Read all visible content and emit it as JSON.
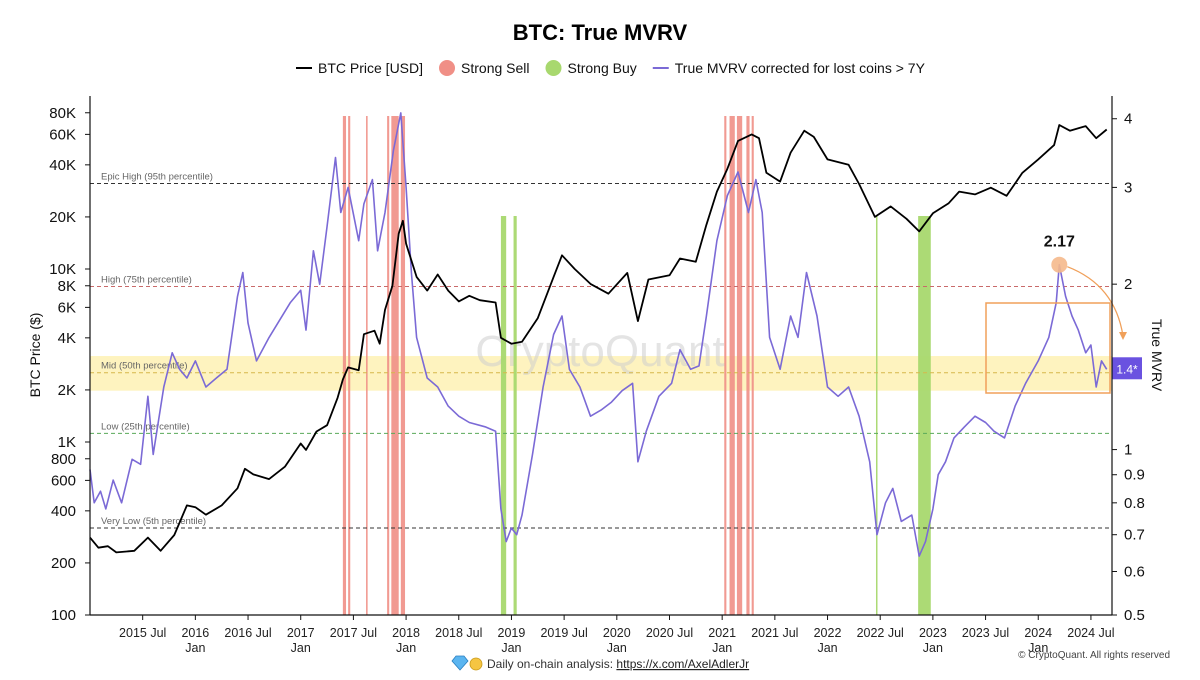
{
  "chart_data": {
    "type": "line",
    "title": "BTC: True MVRV",
    "legend": [
      {
        "name": "BTC Price [USD]",
        "color": "#000000",
        "kind": "line"
      },
      {
        "name": "Strong Sell",
        "color": "#f08f86",
        "kind": "dot"
      },
      {
        "name": "Strong Buy",
        "color": "#a8d86e",
        "kind": "dot"
      },
      {
        "name": "True MVRV corrected for lost coins > 7Y",
        "color": "#7b6ad6",
        "kind": "line"
      }
    ],
    "y_left": {
      "label": "BTC Price ($)",
      "scale": "log",
      "range": [
        100,
        100000
      ],
      "ticks": [
        [
          "80K",
          80000
        ],
        [
          "60K",
          60000
        ],
        [
          "40K",
          40000
        ],
        [
          "20K",
          20000
        ],
        [
          "10K",
          10000
        ],
        [
          "8K",
          8000
        ],
        [
          "6K",
          6000
        ],
        [
          "4K",
          4000
        ],
        [
          "2K",
          2000
        ],
        [
          "1K",
          1000
        ],
        [
          "800",
          800
        ],
        [
          "600",
          600
        ],
        [
          "400",
          400
        ],
        [
          "200",
          200
        ],
        [
          "100",
          100
        ]
      ]
    },
    "y_right": {
      "label": "True MVRV",
      "scale": "log",
      "range": [
        0.5,
        4.4
      ],
      "ticks": [
        [
          "4",
          4
        ],
        [
          "3",
          3
        ],
        [
          "2",
          2
        ],
        [
          "1",
          1
        ],
        [
          "0.9",
          0.9
        ],
        [
          "0.8",
          0.8
        ],
        [
          "0.7",
          0.7
        ],
        [
          "0.6",
          0.6
        ],
        [
          "0.5",
          0.5
        ]
      ]
    },
    "x_range": [
      2015.0,
      2024.7
    ],
    "x_ticks": [
      {
        "t": 2015.5,
        "l1": "2015 Jul",
        "l2": ""
      },
      {
        "t": 2016.0,
        "l1": "2016",
        "l2": "Jan"
      },
      {
        "t": 2016.5,
        "l1": "2016 Jul",
        "l2": ""
      },
      {
        "t": 2017.0,
        "l1": "2017",
        "l2": "Jan"
      },
      {
        "t": 2017.5,
        "l1": "2017 Jul",
        "l2": ""
      },
      {
        "t": 2018.0,
        "l1": "2018",
        "l2": "Jan"
      },
      {
        "t": 2018.5,
        "l1": "2018 Jul",
        "l2": ""
      },
      {
        "t": 2019.0,
        "l1": "2019",
        "l2": "Jan"
      },
      {
        "t": 2019.5,
        "l1": "2019 Jul",
        "l2": ""
      },
      {
        "t": 2020.0,
        "l1": "2020",
        "l2": "Jan"
      },
      {
        "t": 2020.5,
        "l1": "2020 Jul",
        "l2": ""
      },
      {
        "t": 2021.0,
        "l1": "2021",
        "l2": "Jan"
      },
      {
        "t": 2021.5,
        "l1": "2021 Jul",
        "l2": ""
      },
      {
        "t": 2022.0,
        "l1": "2022",
        "l2": "Jan"
      },
      {
        "t": 2022.5,
        "l1": "2022 Jul",
        "l2": ""
      },
      {
        "t": 2023.0,
        "l1": "2023",
        "l2": "Jan"
      },
      {
        "t": 2023.5,
        "l1": "2023 Jul",
        "l2": ""
      },
      {
        "t": 2024.0,
        "l1": "2024",
        "l2": "Jan"
      },
      {
        "t": 2024.5,
        "l1": "2024 Jul",
        "l2": ""
      }
    ],
    "levels": [
      {
        "label": "Epic High (95th percentile)",
        "value": 3.05,
        "color": "#333333"
      },
      {
        "label": "High (75th percentile)",
        "value": 1.98,
        "color": "#c96a6a"
      },
      {
        "label": "Mid (50th percentile)",
        "value": 1.38,
        "color": "#d6b84a"
      },
      {
        "label": "Low (25th percentile)",
        "value": 1.07,
        "color": "#5aaa5a"
      },
      {
        "label": "Very Low (5th percentile)",
        "value": 0.72,
        "color": "#333333"
      }
    ],
    "mid_band": [
      1.28,
      1.48
    ],
    "sell_periods": [
      [
        2017.4,
        2017.43
      ],
      [
        2017.45,
        2017.47
      ],
      [
        2017.62,
        2017.635
      ],
      [
        2017.82,
        2017.84
      ],
      [
        2017.86,
        2017.93
      ],
      [
        2017.95,
        2017.99
      ],
      [
        2021.02,
        2021.04
      ],
      [
        2021.07,
        2021.12
      ],
      [
        2021.14,
        2021.19
      ],
      [
        2021.23,
        2021.26
      ],
      [
        2021.28,
        2021.3
      ]
    ],
    "buy_periods": [
      [
        2018.9,
        2018.95
      ],
      [
        2019.02,
        2019.05
      ],
      [
        2022.46,
        2022.465
      ],
      [
        2022.86,
        2022.98
      ]
    ],
    "btc_price": [
      [
        2015.0,
        280
      ],
      [
        2015.08,
        245
      ],
      [
        2015.17,
        250
      ],
      [
        2015.25,
        230
      ],
      [
        2015.42,
        235
      ],
      [
        2015.55,
        280
      ],
      [
        2015.67,
        235
      ],
      [
        2015.8,
        290
      ],
      [
        2015.92,
        430
      ],
      [
        2016.0,
        420
      ],
      [
        2016.1,
        380
      ],
      [
        2016.25,
        430
      ],
      [
        2016.4,
        540
      ],
      [
        2016.47,
        700
      ],
      [
        2016.55,
        650
      ],
      [
        2016.7,
        610
      ],
      [
        2016.85,
        720
      ],
      [
        2017.0,
        980
      ],
      [
        2017.05,
        900
      ],
      [
        2017.15,
        1150
      ],
      [
        2017.25,
        1250
      ],
      [
        2017.35,
        1800
      ],
      [
        2017.4,
        2300
      ],
      [
        2017.45,
        2700
      ],
      [
        2017.55,
        2600
      ],
      [
        2017.6,
        4200
      ],
      [
        2017.7,
        4400
      ],
      [
        2017.75,
        3700
      ],
      [
        2017.8,
        5800
      ],
      [
        2017.87,
        8000
      ],
      [
        2017.93,
        16000
      ],
      [
        2017.97,
        19000
      ],
      [
        2018.0,
        14000
      ],
      [
        2018.1,
        9000
      ],
      [
        2018.2,
        7500
      ],
      [
        2018.3,
        9300
      ],
      [
        2018.4,
        7500
      ],
      [
        2018.5,
        6500
      ],
      [
        2018.6,
        7000
      ],
      [
        2018.7,
        6600
      ],
      [
        2018.85,
        6400
      ],
      [
        2018.9,
        4000
      ],
      [
        2019.0,
        3700
      ],
      [
        2019.1,
        3800
      ],
      [
        2019.25,
        5200
      ],
      [
        2019.4,
        9000
      ],
      [
        2019.48,
        12000
      ],
      [
        2019.6,
        10000
      ],
      [
        2019.75,
        8200
      ],
      [
        2019.92,
        7200
      ],
      [
        2020.1,
        9500
      ],
      [
        2020.2,
        5000
      ],
      [
        2020.3,
        8700
      ],
      [
        2020.5,
        9200
      ],
      [
        2020.6,
        11500
      ],
      [
        2020.75,
        11000
      ],
      [
        2020.85,
        18000
      ],
      [
        2020.95,
        28000
      ],
      [
        2021.05,
        38000
      ],
      [
        2021.15,
        55000
      ],
      [
        2021.28,
        60000
      ],
      [
        2021.35,
        57000
      ],
      [
        2021.42,
        36000
      ],
      [
        2021.55,
        32000
      ],
      [
        2021.65,
        47000
      ],
      [
        2021.78,
        63000
      ],
      [
        2021.87,
        58000
      ],
      [
        2022.0,
        43000
      ],
      [
        2022.2,
        40000
      ],
      [
        2022.3,
        31000
      ],
      [
        2022.45,
        20000
      ],
      [
        2022.6,
        23000
      ],
      [
        2022.75,
        19500
      ],
      [
        2022.87,
        16500
      ],
      [
        2023.0,
        21000
      ],
      [
        2023.15,
        24000
      ],
      [
        2023.25,
        28000
      ],
      [
        2023.4,
        27000
      ],
      [
        2023.55,
        29500
      ],
      [
        2023.7,
        26500
      ],
      [
        2023.85,
        36000
      ],
      [
        2024.0,
        43000
      ],
      [
        2024.15,
        52000
      ],
      [
        2024.2,
        68000
      ],
      [
        2024.3,
        63000
      ],
      [
        2024.45,
        67000
      ],
      [
        2024.55,
        57000
      ],
      [
        2024.65,
        64000
      ]
    ],
    "true_mvrv": [
      [
        2015.0,
        0.92
      ],
      [
        2015.04,
        0.8
      ],
      [
        2015.1,
        0.84
      ],
      [
        2015.15,
        0.78
      ],
      [
        2015.22,
        0.88
      ],
      [
        2015.3,
        0.8
      ],
      [
        2015.4,
        0.96
      ],
      [
        2015.48,
        0.94
      ],
      [
        2015.55,
        1.25
      ],
      [
        2015.6,
        0.98
      ],
      [
        2015.7,
        1.3
      ],
      [
        2015.78,
        1.5
      ],
      [
        2015.85,
        1.4
      ],
      [
        2015.92,
        1.35
      ],
      [
        2016.0,
        1.45
      ],
      [
        2016.1,
        1.3
      ],
      [
        2016.2,
        1.35
      ],
      [
        2016.3,
        1.4
      ],
      [
        2016.4,
        1.9
      ],
      [
        2016.45,
        2.1
      ],
      [
        2016.5,
        1.7
      ],
      [
        2016.58,
        1.45
      ],
      [
        2016.7,
        1.6
      ],
      [
        2016.8,
        1.72
      ],
      [
        2016.9,
        1.85
      ],
      [
        2017.0,
        1.95
      ],
      [
        2017.05,
        1.65
      ],
      [
        2017.12,
        2.3
      ],
      [
        2017.18,
        2.0
      ],
      [
        2017.25,
        2.55
      ],
      [
        2017.33,
        3.4
      ],
      [
        2017.38,
        2.7
      ],
      [
        2017.45,
        3.0
      ],
      [
        2017.55,
        2.4
      ],
      [
        2017.6,
        2.8
      ],
      [
        2017.68,
        3.1
      ],
      [
        2017.73,
        2.3
      ],
      [
        2017.8,
        2.7
      ],
      [
        2017.88,
        3.5
      ],
      [
        2017.95,
        4.1
      ],
      [
        2018.0,
        3.0
      ],
      [
        2018.05,
        2.1
      ],
      [
        2018.1,
        1.6
      ],
      [
        2018.2,
        1.35
      ],
      [
        2018.3,
        1.3
      ],
      [
        2018.4,
        1.2
      ],
      [
        2018.5,
        1.15
      ],
      [
        2018.6,
        1.12
      ],
      [
        2018.75,
        1.1
      ],
      [
        2018.85,
        1.08
      ],
      [
        2018.9,
        0.78
      ],
      [
        2018.95,
        0.68
      ],
      [
        2019.0,
        0.72
      ],
      [
        2019.05,
        0.7
      ],
      [
        2019.1,
        0.76
      ],
      [
        2019.2,
        0.98
      ],
      [
        2019.3,
        1.3
      ],
      [
        2019.4,
        1.62
      ],
      [
        2019.48,
        1.75
      ],
      [
        2019.55,
        1.4
      ],
      [
        2019.65,
        1.3
      ],
      [
        2019.75,
        1.15
      ],
      [
        2019.85,
        1.18
      ],
      [
        2019.95,
        1.22
      ],
      [
        2020.05,
        1.28
      ],
      [
        2020.15,
        1.32
      ],
      [
        2020.2,
        0.95
      ],
      [
        2020.28,
        1.08
      ],
      [
        2020.4,
        1.25
      ],
      [
        2020.52,
        1.32
      ],
      [
        2020.6,
        1.52
      ],
      [
        2020.7,
        1.4
      ],
      [
        2020.78,
        1.42
      ],
      [
        2020.85,
        1.75
      ],
      [
        2020.95,
        2.4
      ],
      [
        2021.05,
        2.9
      ],
      [
        2021.15,
        3.2
      ],
      [
        2021.25,
        2.7
      ],
      [
        2021.32,
        3.1
      ],
      [
        2021.38,
        2.7
      ],
      [
        2021.45,
        1.6
      ],
      [
        2021.55,
        1.4
      ],
      [
        2021.65,
        1.75
      ],
      [
        2021.72,
        1.6
      ],
      [
        2021.8,
        2.1
      ],
      [
        2021.9,
        1.75
      ],
      [
        2022.0,
        1.3
      ],
      [
        2022.1,
        1.25
      ],
      [
        2022.2,
        1.3
      ],
      [
        2022.3,
        1.15
      ],
      [
        2022.4,
        0.95
      ],
      [
        2022.47,
        0.7
      ],
      [
        2022.55,
        0.8
      ],
      [
        2022.62,
        0.85
      ],
      [
        2022.7,
        0.74
      ],
      [
        2022.8,
        0.76
      ],
      [
        2022.87,
        0.64
      ],
      [
        2022.93,
        0.68
      ],
      [
        2023.0,
        0.78
      ],
      [
        2023.05,
        0.9
      ],
      [
        2023.12,
        0.95
      ],
      [
        2023.2,
        1.05
      ],
      [
        2023.3,
        1.1
      ],
      [
        2023.4,
        1.15
      ],
      [
        2023.5,
        1.12
      ],
      [
        2023.58,
        1.08
      ],
      [
        2023.68,
        1.05
      ],
      [
        2023.78,
        1.2
      ],
      [
        2023.88,
        1.32
      ],
      [
        2024.0,
        1.45
      ],
      [
        2024.1,
        1.6
      ],
      [
        2024.17,
        1.85
      ],
      [
        2024.2,
        2.17
      ],
      [
        2024.26,
        1.9
      ],
      [
        2024.32,
        1.75
      ],
      [
        2024.38,
        1.65
      ],
      [
        2024.45,
        1.5
      ],
      [
        2024.5,
        1.55
      ],
      [
        2024.55,
        1.3
      ],
      [
        2024.6,
        1.45
      ],
      [
        2024.65,
        1.4
      ]
    ],
    "peak_annotation": {
      "label": "2.17",
      "t": 2024.2,
      "value": 2.17
    },
    "current_value": {
      "label": "1.4*",
      "value": 1.4
    },
    "grid": false
  },
  "watermark": "CryptoQuant",
  "footer": {
    "icons": [
      "gem-icon",
      "raised-hands-icon"
    ],
    "text": "Daily on-chain analysis: ",
    "link": "https://x.com/AxelAdlerJr",
    "copyright": "© CryptoQuant. All rights reserved"
  },
  "colors": {
    "price": "#000000",
    "mvrv": "#7b6ad6",
    "sell": "#f08f86",
    "buy": "#a8d86e",
    "band": "#fde98a",
    "highlight": "#f0a05a"
  }
}
